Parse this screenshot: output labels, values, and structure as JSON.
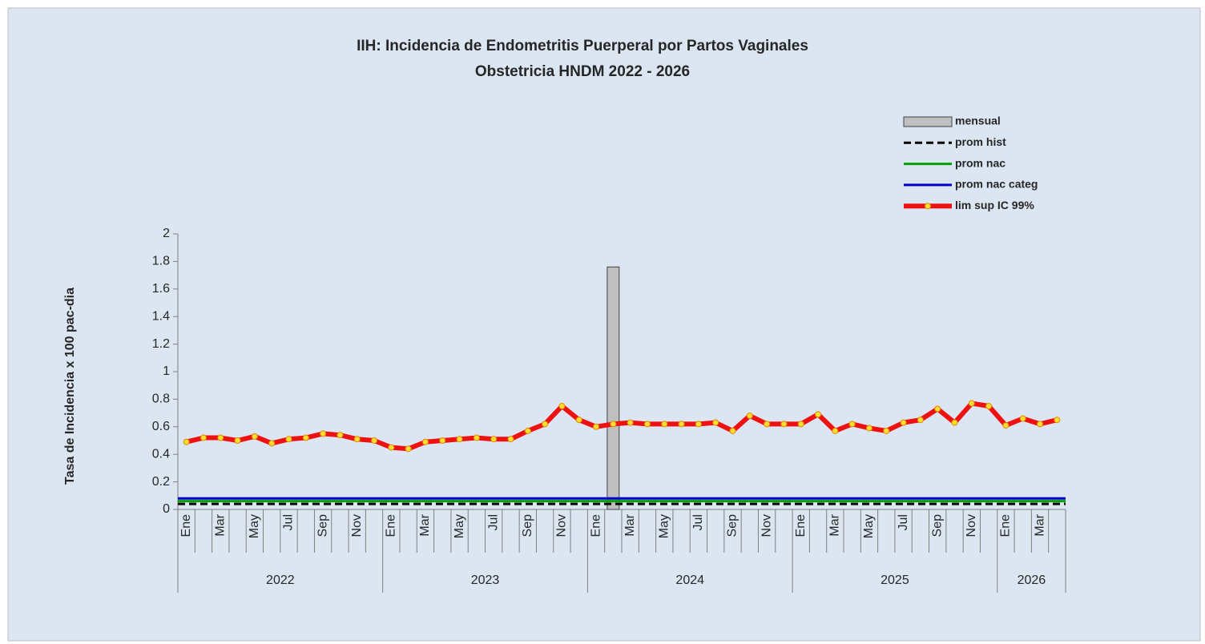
{
  "chart_data": {
    "type": "bar_line",
    "title": "IIH: Incidencia de Endometritis Puerperal por Partos Vaginales",
    "subtitle": "Obstetricia HNDM 2022 - 2026",
    "y_label": "Tasa de Incidencia x 100 pac-dia",
    "categories": [
      "Ene",
      null,
      "Mar",
      null,
      "May",
      null,
      "Jul",
      null,
      "Sep",
      null,
      "Nov",
      null,
      "Ene",
      null,
      "Mar",
      null,
      "May",
      null,
      "Jul",
      null,
      "Sep",
      null,
      "Nov",
      null,
      "Ene",
      null,
      "Mar",
      null,
      "May",
      null,
      "Jul",
      null,
      "Sep",
      null,
      "Nov",
      null,
      "Ene",
      null,
      "Mar",
      null,
      "May",
      null,
      "Jul",
      null,
      "Sep",
      null,
      "Nov",
      null,
      "Ene",
      null,
      "Mar",
      null
    ],
    "years": [
      "2022",
      "2023",
      "2024",
      "2025",
      "2026"
    ],
    "ylim": [
      0,
      2
    ],
    "yticks": [
      0,
      0.2,
      0.4,
      0.6,
      0.8,
      1,
      1.2,
      1.4,
      1.6,
      1.8,
      2
    ],
    "series": [
      {
        "name": "mensual",
        "kind": "bar",
        "color": "#bfbfbf",
        "values": [
          0,
          0,
          0,
          0,
          0,
          0,
          0,
          0,
          0,
          0,
          0,
          0,
          0,
          0,
          0,
          0,
          0,
          0,
          0,
          0,
          0,
          0,
          0,
          0,
          0,
          1.76,
          0,
          0,
          0,
          0,
          0,
          0,
          0,
          0,
          0,
          0,
          0,
          0,
          0,
          0,
          0,
          0,
          0,
          0,
          0,
          0,
          0,
          0,
          0,
          0,
          0,
          0
        ]
      },
      {
        "name": "prom hist",
        "kind": "hline",
        "dash": true,
        "color": "#000000",
        "value": 0.04
      },
      {
        "name": "prom nac",
        "kind": "hline",
        "color": "#00a000",
        "value": 0.06
      },
      {
        "name": "prom nac categ",
        "kind": "hline",
        "color": "#0000cc",
        "value": 0.08
      },
      {
        "name": "lim sup IC 99%",
        "kind": "line",
        "color": "#ee1111",
        "marker_color": "#ffdd33",
        "values": [
          0.49,
          0.52,
          0.52,
          0.5,
          0.53,
          0.48,
          0.51,
          0.52,
          0.55,
          0.54,
          0.51,
          0.5,
          0.45,
          0.44,
          0.49,
          0.5,
          0.51,
          0.52,
          0.51,
          0.51,
          0.57,
          0.62,
          0.75,
          0.65,
          0.6,
          0.62,
          0.63,
          0.62,
          0.62,
          0.62,
          0.62,
          0.63,
          0.57,
          0.68,
          0.62,
          0.62,
          0.62,
          0.69,
          0.57,
          0.62,
          0.59,
          0.57,
          0.63,
          0.65,
          0.73,
          0.63,
          0.77,
          0.75,
          0.61,
          0.66,
          0.62,
          0.65
        ]
      }
    ]
  }
}
